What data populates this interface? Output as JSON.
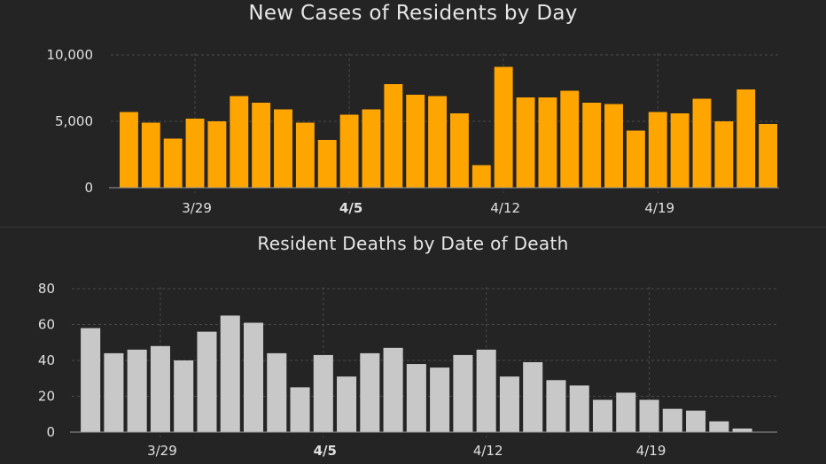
{
  "charts_meta": {
    "bar_color_cases": "#FFA500",
    "bar_color_deaths": "#C8C8C8",
    "background": "#242424"
  },
  "chart_data": [
    {
      "type": "bar",
      "title": "New Cases of Residents by Day",
      "xlabel": "",
      "ylabel": "",
      "ylim": [
        0,
        10000
      ],
      "yticks": [
        0,
        5000,
        10000
      ],
      "ytick_labels": [
        "0",
        "5,000",
        "10,000"
      ],
      "categories": [
        "3/26",
        "3/27",
        "3/28",
        "3/29",
        "3/30",
        "3/31",
        "4/1",
        "4/2",
        "4/3",
        "4/4",
        "4/5",
        "4/6",
        "4/7",
        "4/8",
        "4/9",
        "4/10",
        "4/11",
        "4/12",
        "4/13",
        "4/14",
        "4/15",
        "4/16",
        "4/17",
        "4/18",
        "4/19",
        "4/20",
        "4/21",
        "4/22",
        "4/23",
        "4/24"
      ],
      "values": [
        5700,
        4900,
        3700,
        5200,
        5000,
        6900,
        6400,
        5900,
        4900,
        3600,
        5500,
        5900,
        7800,
        7000,
        6900,
        5600,
        1700,
        9100,
        6800,
        6800,
        7300,
        6400,
        6300,
        4300,
        5700,
        5600,
        6700,
        5000,
        7400,
        4800
      ],
      "xtick_labels": [
        "3/29",
        "4/5",
        "4/12",
        "4/19"
      ],
      "xtick_categories": [
        "3/29",
        "4/5",
        "4/12",
        "4/19"
      ],
      "grid": true
    },
    {
      "type": "bar",
      "title": "Resident Deaths by Date of Death",
      "xlabel": "",
      "ylabel": "",
      "ylim": [
        0,
        80
      ],
      "yticks": [
        0,
        20,
        40,
        60,
        80
      ],
      "ytick_labels": [
        "0",
        "20",
        "40",
        "60",
        "80"
      ],
      "categories": [
        "3/26",
        "3/27",
        "3/28",
        "3/29",
        "3/30",
        "3/31",
        "4/1",
        "4/2",
        "4/3",
        "4/4",
        "4/5",
        "4/6",
        "4/7",
        "4/8",
        "4/9",
        "4/10",
        "4/11",
        "4/12",
        "4/13",
        "4/14",
        "4/15",
        "4/16",
        "4/17",
        "4/18",
        "4/19",
        "4/20",
        "4/21",
        "4/22",
        "4/23",
        "4/24"
      ],
      "values": [
        58,
        44,
        46,
        48,
        40,
        56,
        65,
        61,
        44,
        25,
        43,
        31,
        44,
        47,
        38,
        36,
        43,
        46,
        31,
        39,
        29,
        26,
        18,
        22,
        18,
        13,
        12,
        6,
        2,
        0
      ],
      "xtick_labels": [
        "3/29",
        "4/5",
        "4/12",
        "4/19"
      ],
      "xtick_categories": [
        "3/29",
        "4/5",
        "4/12",
        "4/19"
      ],
      "grid": true
    }
  ]
}
